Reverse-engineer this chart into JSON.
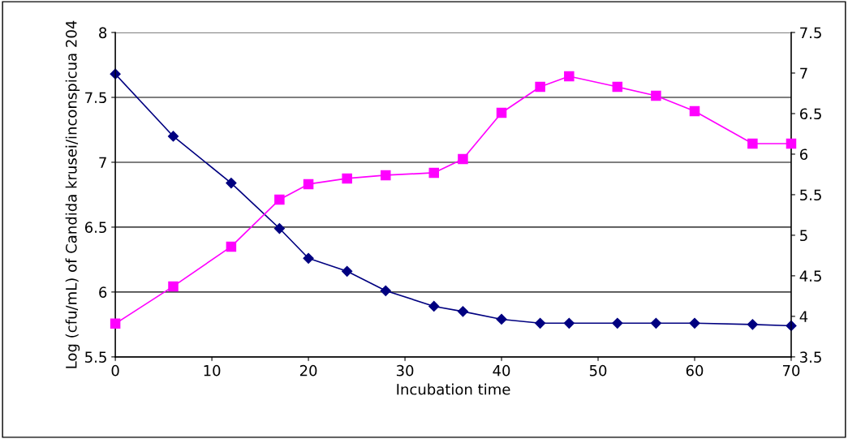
{
  "chart_data": {
    "type": "line",
    "xlabel": "Incubation time",
    "ylabel": "Log (cfu/mL) of Candida krusei/inconspicua 204",
    "x": [
      0,
      6,
      12,
      17,
      20,
      24,
      28,
      33,
      36,
      40,
      44,
      47,
      52,
      56,
      60,
      66,
      70
    ],
    "series": [
      {
        "color": "#000080",
        "marker": "diamond",
        "values": [
          7.68,
          7.2,
          6.84,
          6.49,
          6.26,
          6.16,
          6.01,
          5.89,
          5.85,
          5.79,
          5.76,
          5.76,
          5.76,
          5.76,
          5.76,
          5.75,
          5.74
        ]
      },
      {
        "color": "#ff00ff",
        "marker": "square",
        "axis": "y2",
        "values": [
          3.91,
          4.37,
          4.86,
          5.44,
          5.63,
          5.7,
          5.74,
          5.77,
          5.94,
          6.51,
          6.83,
          6.96,
          6.83,
          6.72,
          6.53,
          6.13,
          6.13
        ]
      }
    ],
    "xlim": [
      0,
      70
    ],
    "xticks": [
      0,
      10,
      20,
      30,
      40,
      50,
      60,
      70
    ],
    "ylim": [
      5.5,
      8
    ],
    "yticks": [
      5.5,
      6,
      6.5,
      7,
      7.5,
      8
    ],
    "y2lim": [
      3.5,
      7.5
    ],
    "y2ticks": [
      3.5,
      4,
      4.5,
      5,
      5.5,
      6,
      6.5,
      7,
      7.5
    ],
    "grid": "y",
    "legend": false
  }
}
